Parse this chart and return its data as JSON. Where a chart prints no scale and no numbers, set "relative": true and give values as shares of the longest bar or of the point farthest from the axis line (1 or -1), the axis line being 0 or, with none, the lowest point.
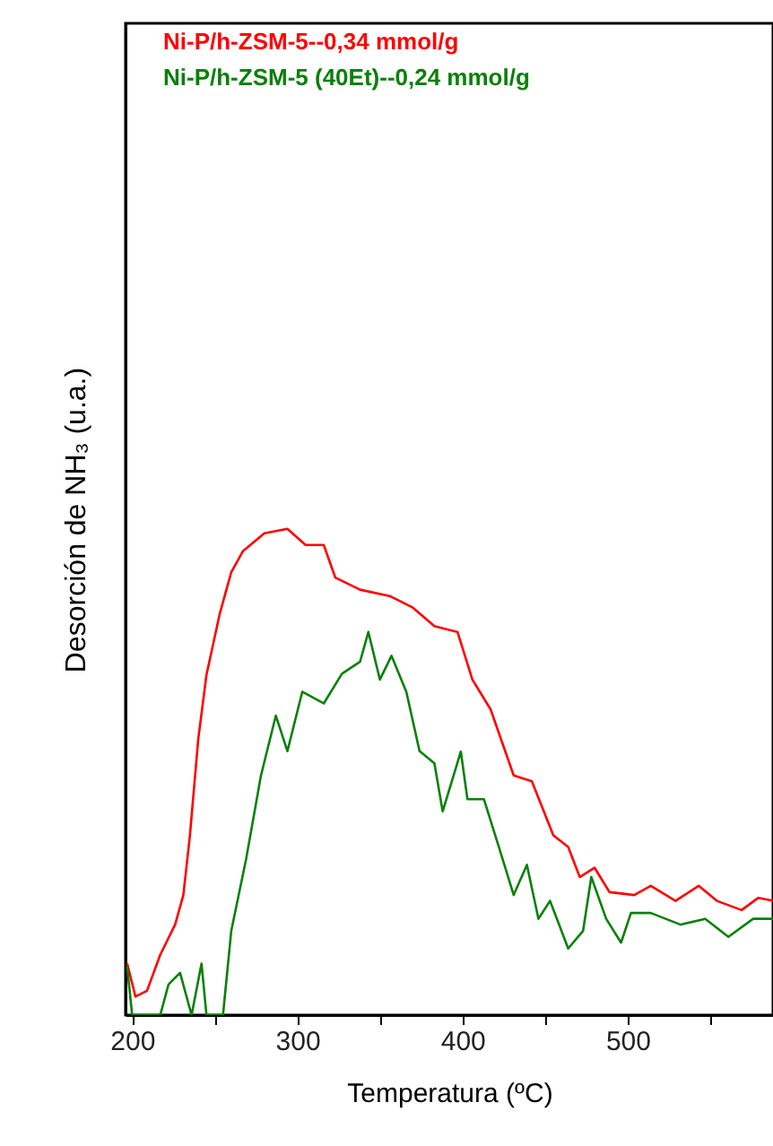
{
  "chart_data": {
    "type": "line",
    "xlabel": "Temperatura (ºC)",
    "ylabel": "Desorción de NH₃ (u.a.)",
    "relative": true,
    "legend": "top left",
    "xlim": [
      196,
      588
    ],
    "xticks": [
      200,
      {
        "value": 250,
        "label": null
      },
      300,
      {
        "value": 350,
        "label": null
      },
      400,
      {
        "value": 450,
        "label": null
      },
      500,
      {
        "value": 550,
        "label": null
      }
    ],
    "series": [
      {
        "name": "Ni-P/h-ZSM-5--0,34 mmol/g",
        "color": "#ff0000",
        "x": [
          197,
          202,
          209,
          217,
          226,
          231,
          235,
          240,
          245,
          253,
          260,
          267,
          280,
          294,
          305,
          316,
          323,
          338,
          356,
          370,
          383,
          397,
          406,
          417,
          431,
          442,
          455,
          464,
          471,
          480,
          489,
          504,
          514,
          529,
          543,
          554,
          569,
          579,
          588
        ],
        "values": [
          0.106,
          0.038,
          0.05,
          0.124,
          0.186,
          0.247,
          0.37,
          0.567,
          0.7,
          0.825,
          0.911,
          0.954,
          0.991,
          1.0,
          0.967,
          0.967,
          0.9,
          0.875,
          0.862,
          0.838,
          0.8,
          0.788,
          0.69,
          0.629,
          0.493,
          0.481,
          0.37,
          0.346,
          0.284,
          0.303,
          0.253,
          0.247,
          0.266,
          0.235,
          0.266,
          0.235,
          0.216,
          0.241,
          0.235
        ]
      },
      {
        "name": "Ni-P/h-ZSM-5 (40Et)--0,24 mmol/g",
        "color": "#0a800a",
        "x": [
          197,
          200,
          217,
          222,
          229,
          236,
          242,
          245,
          255,
          260,
          269,
          278,
          287,
          294,
          303,
          316,
          327,
          338,
          343,
          350,
          357,
          366,
          374,
          383,
          388,
          399,
          403,
          413,
          422,
          431,
          439,
          446,
          453,
          464,
          473,
          478,
          487,
          496,
          502,
          514,
          532,
          547,
          561,
          576,
          588
        ],
        "values": [
          0.1,
          0.0,
          0.0,
          0.063,
          0.087,
          0.0,
          0.106,
          0.0,
          0.0,
          0.173,
          0.321,
          0.493,
          0.616,
          0.543,
          0.665,
          0.641,
          0.702,
          0.727,
          0.788,
          0.69,
          0.739,
          0.665,
          0.543,
          0.518,
          0.419,
          0.542,
          0.444,
          0.444,
          0.346,
          0.247,
          0.309,
          0.198,
          0.235,
          0.137,
          0.173,
          0.284,
          0.198,
          0.149,
          0.21,
          0.21,
          0.186,
          0.198,
          0.161,
          0.198,
          0.198
        ]
      }
    ]
  }
}
